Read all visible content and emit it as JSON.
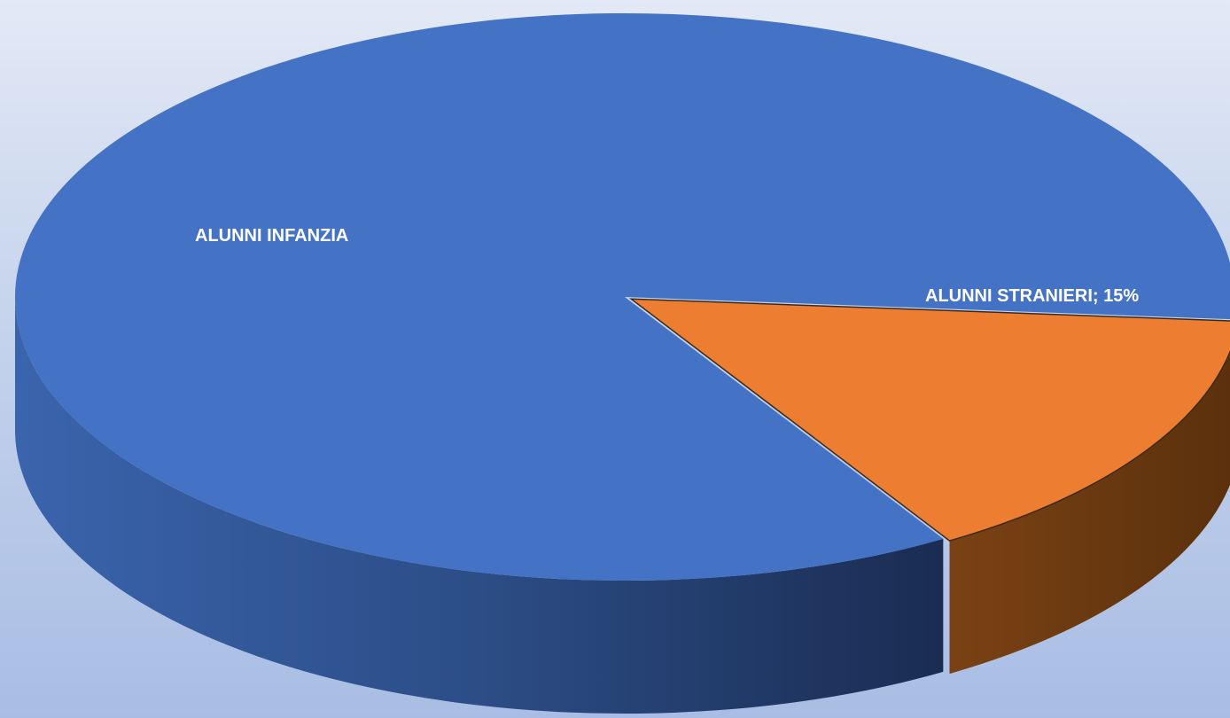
{
  "chart_data": {
    "type": "pie",
    "style": "3d",
    "slices": [
      {
        "name": "ALUNNI INFANZIA",
        "value": 85,
        "label": "ALUNNI INFANZIA",
        "color": "#4472c4"
      },
      {
        "name": "ALUNNI STRANIERI",
        "value": 15,
        "label": "ALUNNI STRANIERI; 15%",
        "color": "#ed7d31"
      }
    ],
    "legend": false
  }
}
